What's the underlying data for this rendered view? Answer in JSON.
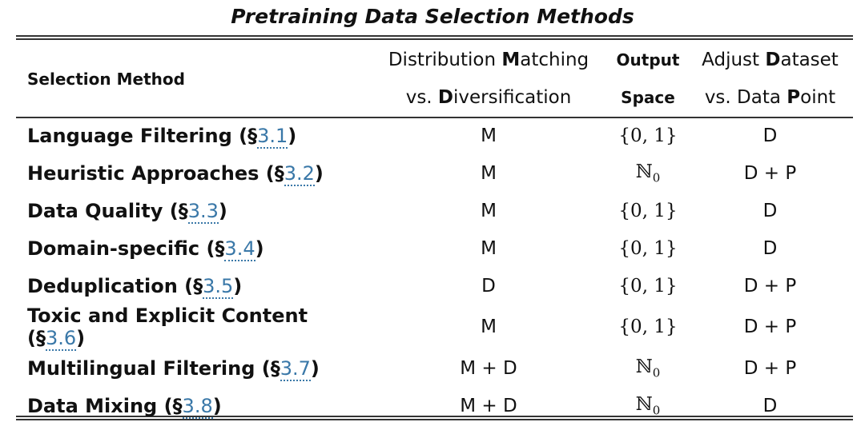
{
  "title": "Pretraining Data Selection Methods",
  "headers": [
    {
      "lines": [
        [
          "Selection Method"
        ]
      ]
    },
    {
      "lines": [
        [
          "Distribution ",
          "M",
          "atching"
        ],
        [
          "vs. ",
          "D",
          "iversification"
        ]
      ]
    },
    {
      "lines": [
        [
          "Output"
        ],
        [
          "Space"
        ]
      ]
    },
    {
      "lines": [
        [
          "Adjust ",
          "D",
          "ataset"
        ],
        [
          "vs. Data ",
          "P",
          "oint"
        ]
      ]
    }
  ],
  "rows": [
    {
      "method": [
        "Language Filtering (§",
        "3.1",
        ")"
      ],
      "matching": "M",
      "output": {
        "main": "{0, 1}"
      },
      "adjust": "D"
    },
    {
      "method": [
        "Heuristic Approaches (§",
        "3.2",
        ")"
      ],
      "matching": "M",
      "output": {
        "main": "ℕ",
        "sub": "0"
      },
      "adjust": "D + P"
    },
    {
      "method": [
        "Data Quality (§",
        "3.3",
        ")"
      ],
      "matching": "M",
      "output": {
        "main": "{0, 1}"
      },
      "adjust": "D"
    },
    {
      "method": [
        "Domain-specific (§",
        "3.4",
        ")"
      ],
      "matching": "M",
      "output": {
        "main": "{0, 1}"
      },
      "adjust": "D"
    },
    {
      "method": [
        "Deduplication (§",
        "3.5",
        ")"
      ],
      "matching": "D",
      "output": {
        "main": "{0, 1}"
      },
      "adjust": "D + P"
    },
    {
      "method": [
        "Toxic and Explicit Content (§",
        "3.6",
        ")"
      ],
      "matching": "M",
      "output": {
        "main": "{0, 1}"
      },
      "adjust": "D + P"
    },
    {
      "method": [
        "Multilingual Filtering (§",
        "3.7",
        ")"
      ],
      "matching": "M + D",
      "output": {
        "main": "ℕ",
        "sub": "0"
      },
      "adjust": "D + P"
    },
    {
      "method": [
        "Data Mixing (§",
        "3.8",
        ")"
      ],
      "matching": "M + D",
      "output": {
        "main": "ℕ",
        "sub": "0"
      },
      "adjust": "D"
    }
  ]
}
